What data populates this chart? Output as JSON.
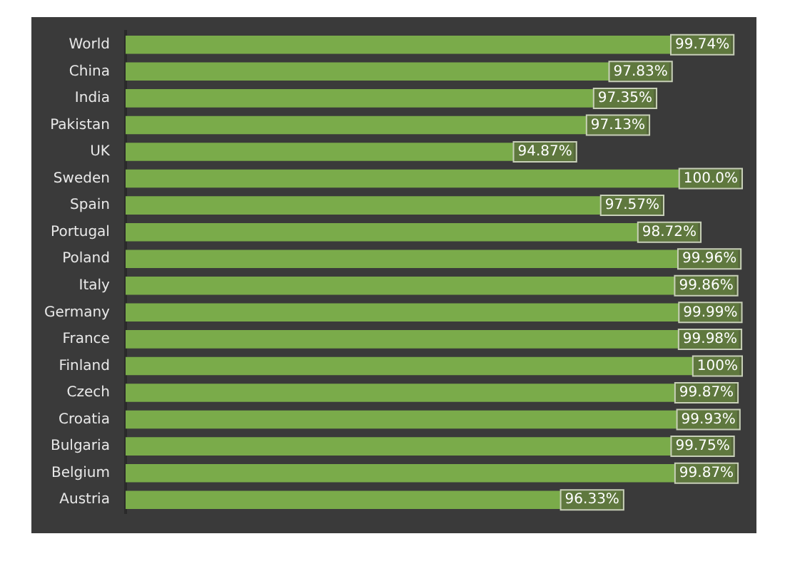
{
  "chart_data": {
    "type": "bar",
    "orientation": "horizontal",
    "categories": [
      "World",
      "China",
      "India",
      "Pakistan",
      "UK",
      "Sweden",
      "Spain",
      "Portugal",
      "Poland",
      "Italy",
      "Germany",
      "France",
      "Finland",
      "Czech",
      "Croatia",
      "Bulgaria",
      "Belgium",
      "Austria"
    ],
    "values": [
      99.74,
      97.83,
      97.35,
      97.13,
      94.87,
      100.0,
      97.57,
      98.72,
      99.96,
      99.86,
      99.99,
      99.98,
      100,
      99.87,
      99.93,
      99.75,
      99.87,
      96.33
    ],
    "value_labels": [
      "99.74%",
      "97.83%",
      "97.35%",
      "97.13%",
      "94.87%",
      "100.0%",
      "97.57%",
      "98.72%",
      "99.96%",
      "99.86%",
      "99.99%",
      "99.98%",
      "100%",
      "99.87%",
      "99.93%",
      "99.75%",
      "99.87%",
      "96.33%"
    ],
    "color": "#7aab4a",
    "xlim": [
      81,
      100
    ],
    "tick_labels": "y",
    "legend": false
  }
}
